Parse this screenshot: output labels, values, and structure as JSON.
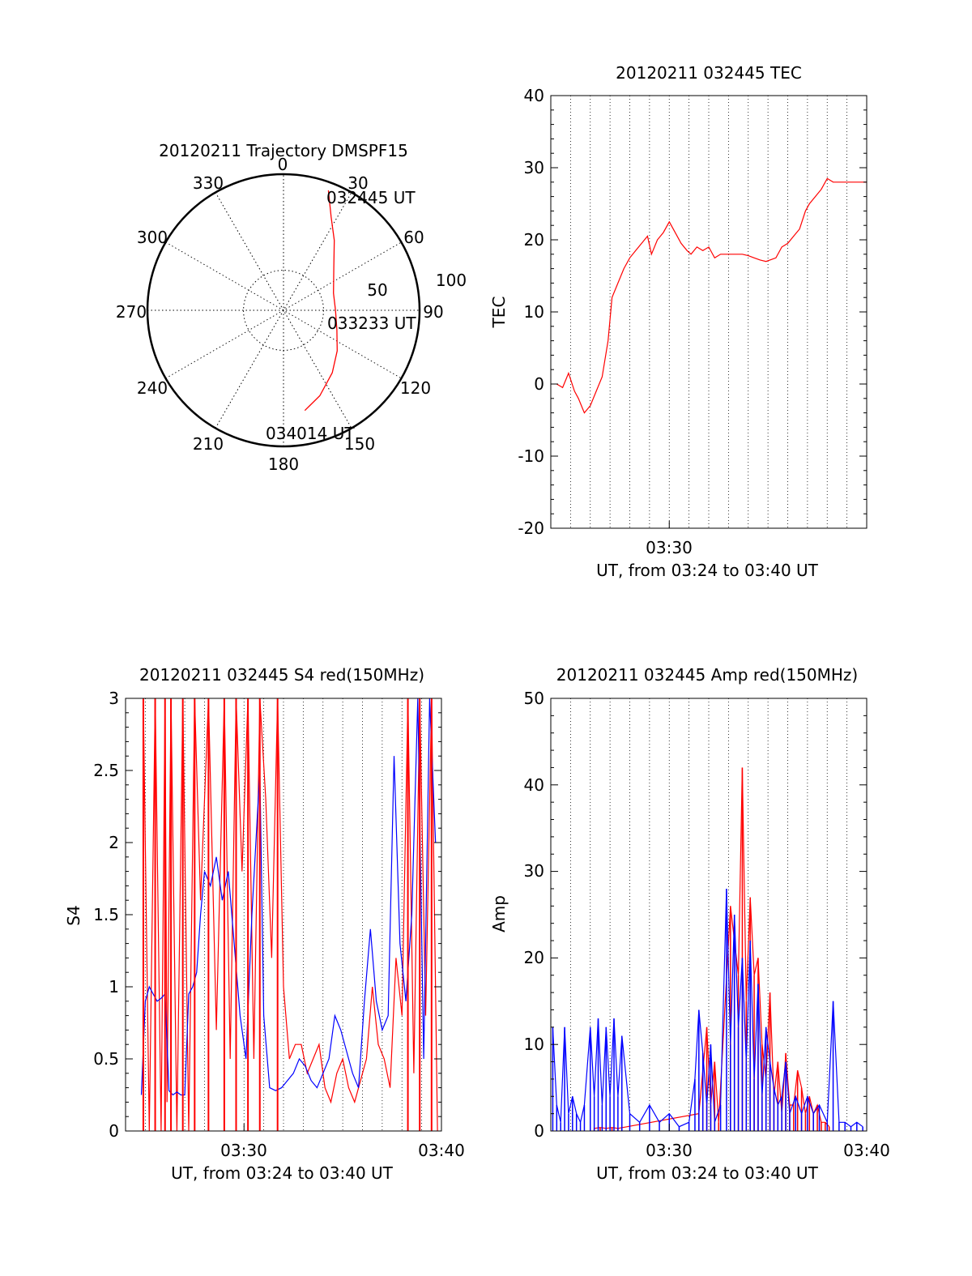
{
  "colors": {
    "red": "#ff0000",
    "blue": "#0000ff",
    "axis": "#000000",
    "grid": "#000000"
  },
  "chart_data": [
    {
      "type": "polar",
      "title": "20120211 Trajectory DMSPF15",
      "azimuth_labels": [
        "0",
        "30",
        "60",
        "90",
        "120",
        "150",
        "180",
        "210",
        "240",
        "270",
        "300",
        "330"
      ],
      "radial_labels": [
        "50",
        "100"
      ],
      "time_labels": [
        "032445 UT",
        "033233 UT",
        "034014 UT"
      ],
      "trajectory": {
        "color": "red",
        "points_az_r": [
          [
            20.5,
            160
          ],
          [
            27,
            131
          ],
          [
            36,
            108
          ],
          [
            50,
            82
          ],
          [
            71,
            66
          ],
          [
            90,
            65
          ],
          [
            110,
            71
          ],
          [
            127,
            84
          ],
          [
            142,
            99
          ],
          [
            157,
            116
          ],
          [
            168,
            128
          ]
        ]
      }
    },
    {
      "type": "line",
      "title": "20120211 032445 TEC",
      "xlabel": "UT, from 03:24 to 03:40 UT",
      "ylabel": "TEC",
      "x_tick_labels": [
        "03:30"
      ],
      "ylim": [
        -20,
        40
      ],
      "y_ticks": [
        "-20",
        "-10",
        "0",
        "10",
        "20",
        "30",
        "40"
      ],
      "grid": "vertical dotted",
      "series": [
        {
          "color": "red",
          "x_minutes": [
            0.3,
            0.6,
            0.9,
            1.2,
            1.4,
            1.7,
            2.0,
            2.3,
            2.6,
            2.9,
            3.1,
            3.4,
            3.7,
            4.0,
            4.3,
            4.6,
            4.9,
            5.1,
            5.4,
            5.7,
            6.0,
            6.3,
            6.6,
            6.9,
            7.1,
            7.4,
            7.7,
            8.0,
            8.3,
            8.6,
            8.9,
            9.1,
            9.4,
            9.7,
            10.0,
            10.3,
            10.6,
            10.9,
            11.1,
            11.4,
            11.7,
            12.0,
            12.3,
            12.6,
            12.9,
            13.1,
            13.4,
            13.7,
            14.0,
            14.3,
            14.6,
            14.9,
            15.1,
            15.4,
            15.7,
            16.0
          ],
          "values": [
            0,
            -0.5,
            1.5,
            -1,
            -2,
            -4,
            -3,
            -1,
            1,
            6,
            12,
            14,
            16,
            17.5,
            18.5,
            19.5,
            20.5,
            18,
            20,
            21,
            22.5,
            21,
            19.5,
            18.5,
            18,
            19,
            18.5,
            19,
            17.5,
            18,
            18,
            18,
            18,
            18,
            17.8,
            17.5,
            17.2,
            17,
            17.2,
            17.5,
            19,
            19.5,
            20.5,
            21.5,
            24,
            25,
            26,
            27,
            28.5,
            28,
            28,
            28,
            28,
            28,
            28,
            28
          ]
        }
      ]
    },
    {
      "type": "line",
      "title": "20120211 032445 S4 red(150MHz)",
      "xlabel": "UT, from 03:24 to 03:40 UT",
      "ylabel": "S4",
      "x_tick_labels": [
        "03:30",
        "03:40"
      ],
      "ylim": [
        0,
        3
      ],
      "y_ticks": [
        "0",
        "0.5",
        "1",
        "1.5",
        "2",
        "2.5",
        "3"
      ],
      "grid": "vertical dotted",
      "series": [
        {
          "color": "red",
          "x_minutes": [
            0.9,
            1.2,
            1.5,
            1.8,
            2.0,
            2.1,
            2.3,
            2.6,
            2.9,
            3.2,
            3.5,
            3.8,
            4.2,
            4.6,
            5.0,
            5.3,
            5.6,
            5.9,
            6.2,
            6.5,
            6.8,
            7.1,
            7.4,
            7.7,
            8.0,
            8.3,
            8.6,
            8.9,
            9.2,
            9.5,
            9.8,
            10.1,
            10.4,
            10.7,
            11.0,
            11.3,
            11.6,
            11.9,
            12.2,
            12.5,
            12.8,
            13.1,
            13.4,
            13.7,
            14.0,
            14.3,
            14.6,
            14.9,
            15.2,
            15.5,
            15.8
          ],
          "values": [
            3,
            0,
            3,
            0,
            3,
            0.2,
            3,
            0,
            3,
            0,
            3,
            1.6,
            3,
            0.7,
            3,
            0.5,
            3,
            1.8,
            3,
            0.5,
            3,
            2.3,
            1.2,
            3,
            1.0,
            0.5,
            0.6,
            0.6,
            0.4,
            0.5,
            0.6,
            0.3,
            0.2,
            0.4,
            0.5,
            0.3,
            0.2,
            0.35,
            0.5,
            1.0,
            0.6,
            0.5,
            0.3,
            1.2,
            0.8,
            3,
            0.4,
            3,
            0.8,
            3,
            0
          ]
        },
        {
          "color": "blue",
          "x_minutes": [
            0.8,
            1.0,
            1.2,
            1.4,
            1.6,
            1.8,
            2.0,
            2.2,
            2.4,
            2.6,
            2.8,
            3.0,
            3.2,
            3.4,
            3.6,
            3.8,
            4.0,
            4.3,
            4.6,
            4.9,
            5.2,
            5.5,
            5.8,
            6.1,
            6.4,
            6.6,
            6.8,
            7.0,
            7.3,
            7.6,
            7.9,
            8.2,
            8.5,
            8.8,
            9.1,
            9.4,
            9.7,
            10.0,
            10.3,
            10.6,
            10.9,
            11.2,
            11.5,
            11.8,
            12.1,
            12.4,
            12.7,
            13.0,
            13.3,
            13.6,
            13.9,
            14.2,
            14.5,
            14.8,
            15.1,
            15.4,
            15.7
          ],
          "values": [
            0.25,
            0.9,
            1.0,
            0.95,
            0.9,
            0.92,
            0.95,
            0.28,
            0.25,
            0.27,
            0.25,
            0.25,
            0.95,
            1.0,
            1.1,
            1.5,
            1.8,
            1.7,
            1.9,
            1.6,
            1.8,
            1.3,
            0.8,
            0.5,
            1.5,
            2.0,
            2.5,
            0.8,
            0.3,
            0.28,
            0.3,
            0.35,
            0.4,
            0.5,
            0.45,
            0.35,
            0.3,
            0.4,
            0.5,
            0.8,
            0.7,
            0.55,
            0.4,
            0.3,
            0.9,
            1.4,
            0.9,
            0.7,
            0.8,
            2.6,
            1.3,
            0.9,
            1.5,
            3,
            0.5,
            3,
            2
          ]
        }
      ]
    },
    {
      "type": "line",
      "title": "20120211 032445 Amp red(150MHz)",
      "xlabel": "UT, from 03:24 to 03:40 UT",
      "ylabel": "Amp",
      "x_tick_labels": [
        "03:30",
        "03:40"
      ],
      "ylim": [
        0,
        50
      ],
      "y_ticks": [
        "0",
        "10",
        "20",
        "30",
        "40",
        "50"
      ],
      "grid": "vertical dotted",
      "series": [
        {
          "color": "red",
          "x_minutes": [
            2.2,
            2.5,
            2.8,
            3.1,
            3.4,
            7.5,
            7.7,
            7.9,
            8.1,
            8.3,
            8.5,
            9.1,
            9.3,
            9.5,
            9.7,
            9.9,
            10.1,
            10.3,
            10.5,
            10.7,
            10.9,
            11.1,
            11.3,
            11.5,
            11.7,
            11.9,
            12.1,
            12.3,
            12.5,
            12.7,
            12.9,
            13.1,
            13.3,
            13.5,
            13.7,
            13.9,
            14.1
          ],
          "values": [
            0.3,
            0.4,
            0.3,
            0.4,
            0.3,
            2,
            7,
            12,
            3,
            8,
            1,
            26,
            22,
            18,
            42,
            15,
            27,
            18,
            20,
            10,
            6,
            16,
            4,
            8,
            2,
            9,
            3,
            3,
            7,
            5,
            2,
            4,
            2,
            3,
            1,
            1,
            0.5
          ]
        },
        {
          "color": "blue",
          "x_minutes": [
            0.1,
            0.3,
            0.5,
            0.7,
            0.9,
            1.1,
            1.3,
            1.5,
            1.7,
            2.0,
            2.2,
            2.4,
            2.6,
            2.8,
            3.0,
            3.2,
            3.4,
            3.6,
            4.0,
            4.5,
            5.0,
            5.5,
            6.0,
            6.5,
            7.0,
            7.3,
            7.5,
            7.7,
            7.9,
            8.1,
            8.3,
            8.6,
            8.9,
            9.1,
            9.3,
            9.5,
            9.7,
            9.9,
            10.1,
            10.3,
            10.5,
            10.7,
            10.9,
            11.1,
            11.3,
            11.5,
            11.7,
            11.9,
            12.1,
            12.4,
            12.7,
            13.0,
            13.3,
            13.6,
            14.0,
            14.3,
            14.6,
            14.9,
            15.2,
            15.5,
            15.8
          ],
          "values": [
            12,
            3,
            1,
            12,
            2,
            4,
            2,
            1,
            3,
            12,
            4,
            13,
            3,
            12,
            4,
            13,
            4,
            11,
            2,
            1,
            3,
            1,
            2,
            0.5,
            1,
            6,
            14,
            9,
            3,
            10,
            1,
            3,
            28,
            10,
            25,
            12,
            20,
            8,
            22,
            6,
            17,
            4,
            12,
            8,
            5,
            3,
            4,
            8,
            2,
            4,
            2,
            4,
            2,
            3,
            1,
            15,
            1,
            1,
            0.5,
            1,
            0.5
          ]
        }
      ]
    }
  ]
}
